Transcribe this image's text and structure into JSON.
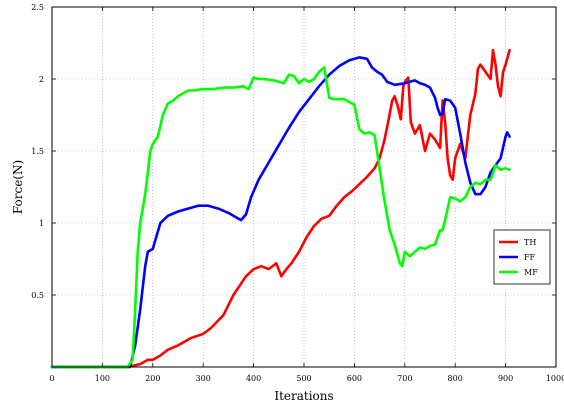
{
  "chart_data": {
    "type": "line",
    "title": "",
    "xlabel": "Iterations",
    "ylabel": "Force(N)",
    "xlim": [
      0,
      1000
    ],
    "ylim": [
      0,
      2.5
    ],
    "xticks": [
      0,
      100,
      200,
      300,
      400,
      500,
      600,
      700,
      800,
      900,
      1000
    ],
    "yticks": [
      0.5,
      1,
      1.5,
      2,
      2.5
    ],
    "xtick_labels": [
      "0",
      "100",
      "200",
      "300",
      "400",
      "500",
      "600",
      "700",
      "800",
      "900",
      "1000"
    ],
    "ytick_labels": [
      "0.5",
      "1",
      "1.5",
      "2",
      "2.5"
    ],
    "grid": true,
    "legend_position": "right",
    "series": [
      {
        "name": "TH",
        "color": "#ff0000",
        "x": [
          0,
          150,
          175,
          190,
          200,
          215,
          230,
          250,
          275,
          300,
          315,
          340,
          360,
          385,
          400,
          415,
          430,
          445,
          455,
          465,
          475,
          490,
          505,
          520,
          535,
          550,
          565,
          580,
          595,
          610,
          625,
          640,
          650,
          660,
          668,
          675,
          680,
          687,
          692,
          697,
          702,
          707,
          712,
          720,
          730,
          740,
          750,
          760,
          770,
          775,
          780,
          785,
          790,
          795,
          800,
          810,
          820,
          830,
          840,
          845,
          850,
          860,
          870,
          875,
          880,
          885,
          890,
          895,
          900,
          908
        ],
        "y": [
          0,
          0,
          0.02,
          0.05,
          0.05,
          0.08,
          0.12,
          0.15,
          0.2,
          0.23,
          0.27,
          0.36,
          0.5,
          0.63,
          0.68,
          0.7,
          0.68,
          0.72,
          0.63,
          0.68,
          0.72,
          0.8,
          0.9,
          0.98,
          1.03,
          1.05,
          1.12,
          1.18,
          1.22,
          1.27,
          1.32,
          1.38,
          1.45,
          1.58,
          1.72,
          1.85,
          1.88,
          1.8,
          1.72,
          1.95,
          1.99,
          2.01,
          1.7,
          1.62,
          1.68,
          1.5,
          1.62,
          1.58,
          1.52,
          1.85,
          1.7,
          1.45,
          1.33,
          1.3,
          1.45,
          1.55,
          1.45,
          1.75,
          1.9,
          2.07,
          2.1,
          2.05,
          2.0,
          2.2,
          2.1,
          1.95,
          1.88,
          2.05,
          2.1,
          2.2
        ]
      },
      {
        "name": "FF",
        "color": "#0000ff",
        "x": [
          0,
          155,
          165,
          175,
          185,
          190,
          200,
          205,
          215,
          230,
          250,
          270,
          290,
          310,
          330,
          350,
          365,
          375,
          385,
          395,
          410,
          430,
          450,
          470,
          490,
          510,
          530,
          550,
          570,
          590,
          610,
          625,
          635,
          645,
          655,
          665,
          680,
          700,
          720,
          730,
          740,
          750,
          760,
          765,
          770,
          775,
          780,
          790,
          800,
          810,
          820,
          830,
          840,
          850,
          860,
          870,
          880,
          890,
          900,
          903,
          908
        ],
        "y": [
          0,
          0,
          0.15,
          0.4,
          0.7,
          0.8,
          0.82,
          0.88,
          1.0,
          1.05,
          1.08,
          1.1,
          1.12,
          1.12,
          1.1,
          1.07,
          1.04,
          1.02,
          1.06,
          1.18,
          1.3,
          1.42,
          1.54,
          1.66,
          1.77,
          1.86,
          1.95,
          2.03,
          2.09,
          2.13,
          2.15,
          2.14,
          2.08,
          2.05,
          2.03,
          1.98,
          1.96,
          1.97,
          1.99,
          1.97,
          1.96,
          1.94,
          1.87,
          1.8,
          1.75,
          1.76,
          1.86,
          1.85,
          1.8,
          1.62,
          1.42,
          1.28,
          1.2,
          1.2,
          1.25,
          1.35,
          1.4,
          1.45,
          1.6,
          1.63,
          1.6
        ]
      },
      {
        "name": "MF",
        "color": "#00ff00",
        "x": [
          0,
          150,
          160,
          165,
          170,
          175,
          180,
          185,
          190,
          195,
          200,
          210,
          220,
          230,
          240,
          250,
          260,
          270,
          280,
          300,
          320,
          340,
          360,
          380,
          390,
          400,
          410,
          420,
          440,
          460,
          470,
          480,
          490,
          500,
          510,
          520,
          530,
          540,
          550,
          560,
          580,
          600,
          610,
          620,
          630,
          640,
          660,
          670,
          680,
          690,
          695,
          700,
          710,
          720,
          730,
          740,
          750,
          760,
          770,
          775,
          780,
          790,
          800,
          810,
          820,
          830,
          840,
          850,
          860,
          870,
          880,
          890,
          900,
          908
        ],
        "y": [
          0,
          0,
          0.05,
          0.4,
          0.8,
          1.0,
          1.1,
          1.2,
          1.35,
          1.5,
          1.55,
          1.6,
          1.75,
          1.83,
          1.85,
          1.88,
          1.9,
          1.92,
          1.92,
          1.93,
          1.93,
          1.94,
          1.94,
          1.95,
          1.93,
          2.01,
          2.0,
          2.0,
          1.99,
          1.97,
          2.03,
          2.02,
          1.97,
          2.0,
          1.98,
          2.0,
          2.05,
          2.08,
          1.87,
          1.86,
          1.86,
          1.82,
          1.65,
          1.62,
          1.63,
          1.61,
          1.15,
          0.95,
          0.85,
          0.72,
          0.7,
          0.8,
          0.77,
          0.8,
          0.83,
          0.82,
          0.84,
          0.85,
          0.95,
          0.95,
          1.02,
          1.18,
          1.17,
          1.15,
          1.18,
          1.25,
          1.28,
          1.27,
          1.3,
          1.3,
          1.4,
          1.37,
          1.38,
          1.37
        ]
      }
    ]
  }
}
